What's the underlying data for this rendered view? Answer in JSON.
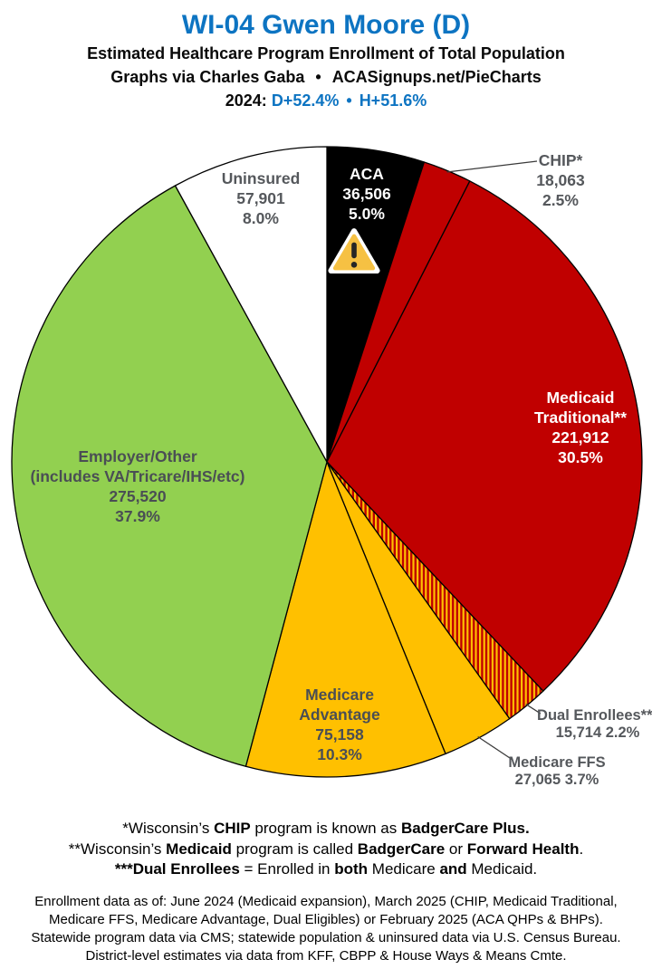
{
  "header": {
    "title": "WI-04 Gwen Moore (D)",
    "subtitle": "Estimated Healthcare Program Enrollment of Total Population",
    "credit_prefix": "Graphs via Charles Gaba",
    "credit_separator": "•",
    "credit_site": "ACASignups.net/PieCharts",
    "year_label": "2024:",
    "margin_d": "D+52.4%",
    "margin_separator": "•",
    "margin_h": "H+51.6%"
  },
  "colors": {
    "accent_blue": "#0d74c2",
    "pie_red": "#c00000",
    "pie_gold": "#ffc000",
    "pie_green": "#92d050",
    "pie_black": "#000000",
    "pie_white": "#ffffff",
    "label_gray": "#55585c",
    "label_dark": "#4a4e54"
  },
  "chart_data": {
    "type": "pie",
    "title": "Estimated Healthcare Program Enrollment of Total Population",
    "start_angle": "12 o'clock",
    "direction": "clockwise",
    "legend_position": "labels on/beside slices",
    "slices": [
      {
        "key": "aca",
        "name": "ACA",
        "value": 36506,
        "pct": 5.0,
        "color": "#000000",
        "text_color": "#ffffff",
        "icon": "warning-triangle-icon",
        "label_lines": [
          "ACA",
          "36,506",
          "5.0%"
        ]
      },
      {
        "key": "chip",
        "name": "CHIP",
        "value": 18063,
        "pct": 2.5,
        "color": "#c00000",
        "text_color": "#55585c",
        "label_outside": true,
        "label_lines": [
          "CHIP*",
          "18,063",
          "2.5%"
        ]
      },
      {
        "key": "medicaid",
        "name": "Medicaid Traditional",
        "value": 221912,
        "pct": 30.5,
        "color": "#c00000",
        "text_color": "#ffffff",
        "label_lines": [
          "Medicaid",
          "Traditional**",
          "221,912",
          "30.5%"
        ]
      },
      {
        "key": "dual",
        "name": "Dual Enrollees",
        "value": 15714,
        "pct": 2.2,
        "color": "#c00000",
        "pattern": "red-yellow-stripes",
        "text_color": "#55585c",
        "label_outside": true,
        "label_lines": [
          "Dual Enrollees***",
          "15,714 2.2%"
        ]
      },
      {
        "key": "ffs",
        "name": "Medicare FFS",
        "value": 27065,
        "pct": 3.7,
        "color": "#ffc000",
        "text_color": "#55585c",
        "label_outside": true,
        "label_lines": [
          "Medicare FFS",
          "27,065 3.7%"
        ]
      },
      {
        "key": "ma",
        "name": "Medicare Advantage",
        "value": 75158,
        "pct": 10.3,
        "color": "#ffc000",
        "text_color": "#4a4e54",
        "label_lines": [
          "Medicare",
          "Advantage",
          "75,158",
          "10.3%"
        ]
      },
      {
        "key": "employer",
        "name": "Employer/Other",
        "value": 275520,
        "pct": 37.9,
        "color": "#92d050",
        "text_color": "#4a4e54",
        "label_lines": [
          "Employer/Other",
          "(includes VA/Tricare/IHS/etc)",
          "275,520",
          "37.9%"
        ]
      },
      {
        "key": "uninsured",
        "name": "Uninsured",
        "value": 57901,
        "pct": 8.0,
        "color": "#ffffff",
        "text_color": "#55585c",
        "label_lines": [
          "Uninsured",
          "57,901",
          "8.0%"
        ]
      }
    ]
  },
  "footnotes": [
    {
      "segments": [
        {
          "t": "*Wisconsin’s ",
          "b": false
        },
        {
          "t": "CHIP",
          "b": true
        },
        {
          "t": " program is known as ",
          "b": false
        },
        {
          "t": "BadgerCare Plus",
          "b": true
        },
        {
          "t": ".",
          "b": true
        }
      ]
    },
    {
      "segments": [
        {
          "t": "**Wisconsin’s ",
          "b": false
        },
        {
          "t": "Medicaid",
          "b": true
        },
        {
          "t": " program is called ",
          "b": false
        },
        {
          "t": "BadgerCare",
          "b": true
        },
        {
          "t": " or ",
          "b": false
        },
        {
          "t": "Forward Health",
          "b": true
        },
        {
          "t": ".",
          "b": false
        }
      ]
    },
    {
      "segments": [
        {
          "t": "***Dual Enrollees",
          "b": true
        },
        {
          "t": " = Enrolled in ",
          "b": false
        },
        {
          "t": "both",
          "b": true
        },
        {
          "t": " Medicare ",
          "b": false
        },
        {
          "t": "and",
          "b": true
        },
        {
          "t": " Medicaid.",
          "b": false
        }
      ]
    }
  ],
  "source_lines": [
    "Enrollment data as of: June 2024 (Medicaid expansion), March 2025 (CHIP, Medicaid Traditional,",
    "Medicare FFS, Medicare Advantage, Dual Eligibles) or February 2025 (ACA QHPs & BHPs).",
    "Statewide program data via CMS; statewide population & uninsured data via U.S. Census Bureau.",
    "District-level estimates via data from KFF, CBPP & House Ways & Means Cmte."
  ]
}
